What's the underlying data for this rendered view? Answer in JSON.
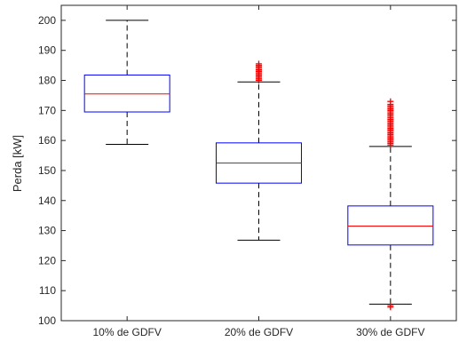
{
  "chart_data": {
    "type": "boxplot",
    "title": "",
    "xlabel": "",
    "ylabel": "Perda [kW]",
    "ylim": [
      100,
      205
    ],
    "yticks": [
      100,
      110,
      120,
      130,
      140,
      150,
      160,
      170,
      180,
      190,
      200
    ],
    "grid": false,
    "legend": "none",
    "categories": [
      "10% de GDFV",
      "20% de GDFV",
      "30% de GDFV"
    ],
    "boxes": [
      {
        "category": "10% de GDFV",
        "whisker_low": 158.7,
        "q1": 169.5,
        "median": 175.5,
        "q3": 181.8,
        "whisker_high": 200.0,
        "outliers_high": [],
        "outliers_low": []
      },
      {
        "category": "20% de GDFV",
        "whisker_low": 126.8,
        "q1": 145.8,
        "median": 152.5,
        "q3": 159.2,
        "whisker_high": 179.5,
        "outliers_high": [
          180.0,
          180.5,
          181.0,
          181.5,
          182.0,
          182.5,
          183.0,
          183.5,
          184.0,
          184.5,
          185.0,
          185.5
        ],
        "outliers_low": []
      },
      {
        "category": "30% de GDFV",
        "whisker_low": 105.5,
        "q1": 125.2,
        "median": 131.5,
        "q3": 138.2,
        "whisker_high": 158.0,
        "outliers_high": [
          158.5,
          159.0,
          159.5,
          160.0,
          160.5,
          161.0,
          161.5,
          162.0,
          162.5,
          163.0,
          163.5,
          164.0,
          164.5,
          165.0,
          165.5,
          166.0,
          166.5,
          167.0,
          167.5,
          168.0,
          168.5,
          169.0,
          169.5,
          170.0,
          170.5,
          171.0,
          171.5,
          172.0,
          173.0
        ],
        "outliers_low": [
          104.5,
          105.0
        ]
      }
    ],
    "colors": {
      "box": "#0000ff",
      "median": "#ff0000",
      "whisker": "#000000",
      "outlier": "#ff0000",
      "axis": "#262626"
    }
  }
}
